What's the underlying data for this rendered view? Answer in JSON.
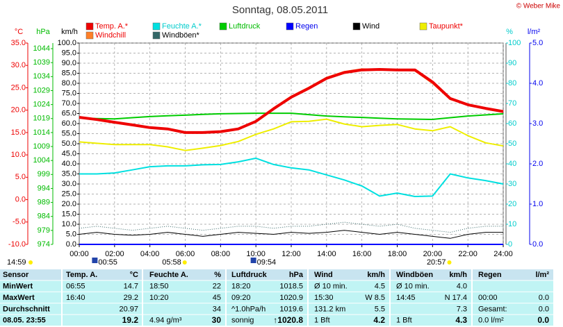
{
  "header": {
    "title": "Sonntag, 08.05.2011",
    "copyright": "© Weber Mike",
    "updated": "14:59"
  },
  "chart_data": {
    "type": "line",
    "x": [
      0,
      1,
      2,
      3,
      4,
      5,
      6,
      7,
      8,
      9,
      10,
      11,
      12,
      13,
      14,
      15,
      16,
      17,
      18,
      19,
      20,
      21,
      22,
      23,
      24
    ],
    "xlim": [
      0,
      24
    ],
    "xticks": [
      {
        "value": 0,
        "label": "00:00"
      },
      {
        "value": 2,
        "label": "02:00"
      },
      {
        "value": 4,
        "label": "04:00"
      },
      {
        "value": 6,
        "label": "06:00"
      },
      {
        "value": 8,
        "label": "08:00"
      },
      {
        "value": 10,
        "label": "10:00"
      },
      {
        "value": 12,
        "label": "12:00"
      },
      {
        "value": 14,
        "label": "14:00"
      },
      {
        "value": 16,
        "label": "16:00"
      },
      {
        "value": 18,
        "label": "18:00"
      },
      {
        "value": 20,
        "label": "20:00"
      },
      {
        "value": 22,
        "label": "22:00"
      },
      {
        "value": 24,
        "label": "24:00"
      }
    ],
    "grid": true,
    "axes": [
      {
        "label": "°C",
        "color": "#ee0000",
        "lim": [
          -10,
          35
        ],
        "ticks": [
          {
            "value": -10,
            "label": "-10.0"
          },
          {
            "value": -5,
            "label": "-5.0"
          },
          {
            "value": 0,
            "label": "0.0"
          },
          {
            "value": 5,
            "label": "5.0"
          },
          {
            "value": 10,
            "label": "10.0"
          },
          {
            "value": 15,
            "label": "15.0"
          },
          {
            "value": 20,
            "label": "20.0"
          },
          {
            "value": 25,
            "label": "25.0"
          },
          {
            "value": 30,
            "label": "30.0"
          },
          {
            "value": 35,
            "label": "35.0"
          }
        ]
      },
      {
        "label": "hPa",
        "color": "#00bb00",
        "lim": [
          974,
          1046
        ],
        "ticks": [
          974,
          979,
          984,
          989,
          994,
          999,
          1004,
          1009,
          1014,
          1019,
          1024,
          1029,
          1034,
          1039,
          1044
        ]
      },
      {
        "label": "km/h",
        "color": "#000000",
        "lim": [
          0,
          100
        ],
        "ticks": [
          {
            "value": 0,
            "label": "0.0"
          },
          {
            "value": 5,
            "label": "5.0"
          },
          {
            "value": 10,
            "label": "10.0"
          },
          {
            "value": 15,
            "label": "15.0"
          },
          {
            "value": 20,
            "label": "20.0"
          },
          {
            "value": 25,
            "label": "25.0"
          },
          {
            "value": 30,
            "label": "30.0"
          },
          {
            "value": 35,
            "label": "35.0"
          },
          {
            "value": 40,
            "label": "40.0"
          },
          {
            "value": 45,
            "label": "45.0"
          },
          {
            "value": 50,
            "label": "50.0"
          },
          {
            "value": 55,
            "label": "55.0"
          },
          {
            "value": 60,
            "label": "60.0"
          },
          {
            "value": 65,
            "label": "65.0"
          },
          {
            "value": 70,
            "label": "70.0"
          },
          {
            "value": 75,
            "label": "75.0"
          },
          {
            "value": 80,
            "label": "80.0"
          },
          {
            "value": 85,
            "label": "85.0"
          },
          {
            "value": 90,
            "label": "90.0"
          },
          {
            "value": 95,
            "label": "95.0"
          },
          {
            "value": 100,
            "label": "100.0"
          }
        ]
      },
      {
        "label": "%",
        "color": "#00cccc",
        "lim": [
          0,
          100
        ],
        "ticks": [
          0,
          10,
          20,
          30,
          40,
          50,
          60,
          70,
          80,
          90,
          100
        ]
      },
      {
        "label": "l/m²",
        "color": "#0000ee",
        "lim": [
          0,
          5
        ],
        "ticks": [
          {
            "value": 0,
            "label": "0.0"
          },
          {
            "value": 1,
            "label": "1.0"
          },
          {
            "value": 2,
            "label": "2.0"
          },
          {
            "value": 3,
            "label": "3.0"
          },
          {
            "value": 4,
            "label": "4.0"
          },
          {
            "value": 5,
            "label": "5.0"
          }
        ]
      }
    ],
    "series": [
      {
        "name": "Temp. A.*",
        "color": "#ee0000",
        "label_color": "#ee0000",
        "axis": 0,
        "values": [
          18.4,
          17.9,
          17.3,
          16.7,
          16.1,
          15.8,
          15.0,
          15.0,
          15.2,
          15.8,
          17.5,
          20.3,
          22.9,
          24.9,
          27.1,
          28.4,
          29.0,
          29.1,
          29.0,
          29.0,
          26.3,
          22.6,
          21.2,
          20.4,
          19.7
        ]
      },
      {
        "name": "Feuchte A.*",
        "color": "#00e0e0",
        "label_color": "#00cccc",
        "axis": 3,
        "values": [
          35,
          35,
          35.5,
          37,
          38.6,
          39,
          39,
          39.5,
          39.7,
          41,
          42.8,
          39.7,
          38,
          37,
          34.5,
          32,
          29,
          24,
          25.5,
          23.8,
          24,
          35,
          33,
          31.7,
          30
        ]
      },
      {
        "name": "Luftdruck",
        "color": "#00cc00",
        "label_color": "#00bb00",
        "axis": 1,
        "values": [
          1019.2,
          1019.0,
          1018.9,
          1019.3,
          1019.7,
          1020.0,
          1020.2,
          1020.5,
          1020.7,
          1020.8,
          1020.9,
          1020.9,
          1020.9,
          1020.4,
          1019.9,
          1019.6,
          1019.4,
          1019.1,
          1018.9,
          1018.8,
          1018.7,
          1019.3,
          1019.9,
          1020.3,
          1020.7
        ]
      },
      {
        "name": "Regen",
        "color": "#0000ff",
        "label_color": "#0000ee",
        "axis": 4,
        "values": [
          0,
          0,
          0,
          0,
          0,
          0,
          0,
          0,
          0,
          0,
          0,
          0,
          0,
          0,
          0,
          0,
          0,
          0,
          0,
          0,
          0,
          0,
          0,
          0,
          0
        ]
      },
      {
        "name": "Wind",
        "color": "#000000",
        "label_color": "#000000",
        "axis": 2,
        "values": [
          5,
          6,
          5,
          4.5,
          5,
          6,
          5,
          4,
          5,
          6,
          5.5,
          5,
          6,
          5.5,
          6,
          7,
          6,
          5,
          6,
          5,
          4,
          3,
          5,
          6,
          6
        ]
      },
      {
        "name": "Taupunkt*",
        "color": "#eeee00",
        "label_color": "#ee0000",
        "axis": 0,
        "values": [
          12.9,
          12.6,
          12.3,
          12.3,
          12.3,
          11.8,
          11.0,
          11.5,
          12.1,
          13.0,
          14.6,
          15.8,
          17.4,
          17.5,
          18.0,
          16.9,
          16.3,
          16.6,
          16.8,
          15.8,
          15.4,
          16.3,
          14.3,
          12.7,
          12.0
        ]
      },
      {
        "name": "Windchill",
        "color": "#ff7f27",
        "label_color": "#ee0000",
        "axis": 0,
        "values": [
          18.4,
          17.9,
          17.3,
          16.7,
          16.1,
          15.8,
          15.0,
          15.0,
          15.2,
          15.8,
          17.5,
          20.5,
          23.1,
          25.1,
          27.3,
          28.6,
          29.2,
          29.1,
          29.0,
          28.8,
          26.0,
          22.4,
          21.2,
          20.4,
          19.7
        ]
      },
      {
        "name": "Windböen*",
        "color": "#336666",
        "label_color": "#000000",
        "axis": 2,
        "values": [
          8,
          9,
          8,
          7,
          8,
          9,
          8,
          7,
          8,
          9,
          9,
          8,
          9,
          9,
          10,
          11,
          10,
          9,
          10,
          8,
          7,
          6,
          8,
          9,
          9
        ]
      }
    ],
    "markers": [
      {
        "value": 0.92,
        "label": "00:55",
        "kind": "min"
      },
      {
        "value": 5.97,
        "label": "05:58",
        "kind": "max"
      },
      {
        "value": 9.9,
        "label": "09:54",
        "kind": "min"
      },
      {
        "value": 20.95,
        "label": "20:57",
        "kind": "max"
      }
    ]
  },
  "table": {
    "rows": [
      [
        "Sensor",
        "Temp. A.",
        "°C",
        "Feuchte A.",
        "%",
        "Luftdruck",
        "hPa",
        "Wind",
        "km/h",
        "Windböen",
        "km/h",
        "Regen",
        "l/m²"
      ],
      [
        "MinWert",
        "06:55",
        "14.7",
        "18:50",
        "22",
        "18:20",
        "1018.5",
        "Ø 10 min.",
        "4.5",
        "Ø 10 min.",
        "4.0",
        null,
        null
      ],
      [
        "MaxWert",
        "16:40",
        "29.2",
        "10:20",
        "45",
        "09:20",
        "1020.9",
        "15:30",
        "W 8.5",
        "14:45",
        "N 17.4",
        "00:00",
        "0.0"
      ],
      [
        "Durchschnitt",
        null,
        "20.97",
        null,
        "34",
        "^1.0hPa/h",
        "1019.6",
        "131.2 km",
        "5.5",
        null,
        "7.3",
        "Gesamt:",
        "0.0"
      ],
      [
        "08.05. 23:55",
        null,
        "19.2",
        "4.94 g/m³",
        "30",
        "sonnig",
        "↑1020.8",
        "1 Bft",
        "4.2",
        "1 Bft",
        "4.3",
        "0.0 l/m²",
        "0.0"
      ]
    ]
  }
}
